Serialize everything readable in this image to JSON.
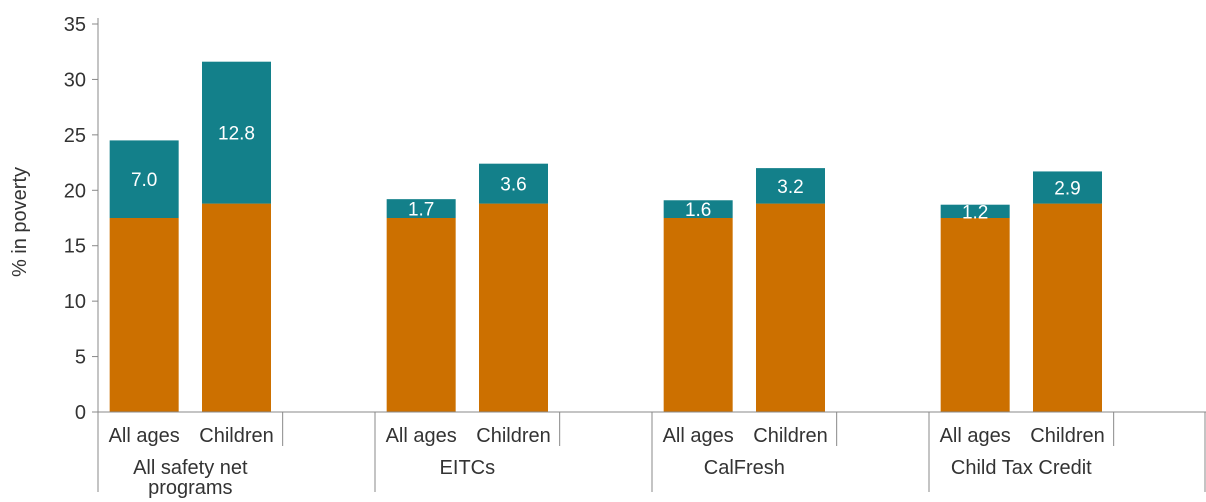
{
  "chart_data": {
    "type": "bar",
    "stacked": true,
    "ylabel": "% in poverty",
    "ylim": [
      0,
      35
    ],
    "yticks": [
      0,
      5,
      10,
      15,
      20,
      25,
      30,
      35
    ],
    "grid": false,
    "groups": [
      {
        "label": "All safety net programs",
        "categories": [
          "All ages",
          "Children"
        ]
      },
      {
        "label": "EITCs",
        "categories": [
          "All ages",
          "Children"
        ]
      },
      {
        "label": "CalFresh",
        "categories": [
          "All ages",
          "Children"
        ]
      },
      {
        "label": "Child Tax Credit",
        "categories": [
          "All ages",
          "Children"
        ]
      }
    ],
    "series": [
      {
        "color": "#cc7000",
        "values": [
          [
            17.5,
            18.8
          ],
          [
            17.5,
            18.8
          ],
          [
            17.5,
            18.8
          ],
          [
            17.5,
            18.8
          ]
        ]
      },
      {
        "color": "#13808a",
        "values": [
          [
            7.0,
            12.8
          ],
          [
            1.7,
            3.6
          ],
          [
            1.6,
            3.2
          ],
          [
            1.2,
            2.9
          ]
        ],
        "labels": [
          [
            "7.0",
            "12.8"
          ],
          [
            "1.7",
            "3.6"
          ],
          [
            "1.6",
            "3.2"
          ],
          [
            "1.2",
            "2.9"
          ]
        ]
      }
    ]
  }
}
